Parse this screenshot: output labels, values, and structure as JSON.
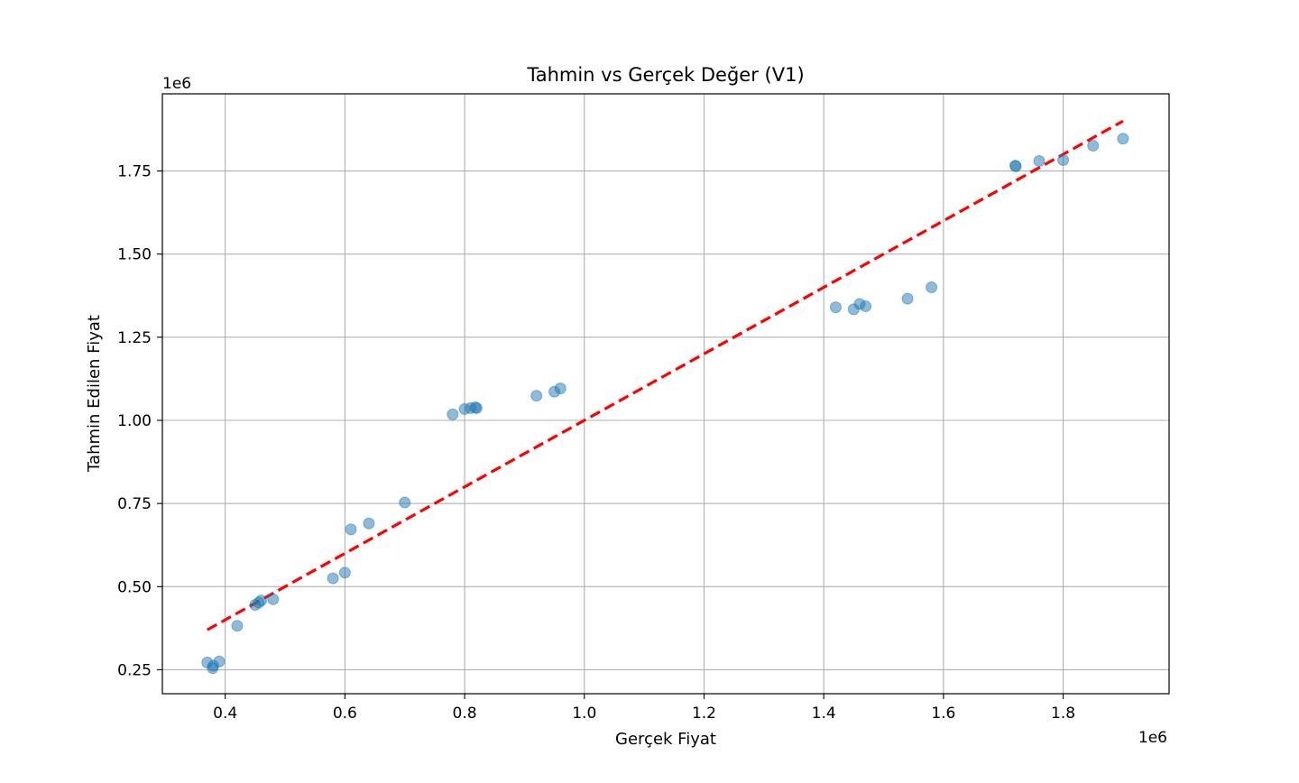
{
  "chart_data": {
    "type": "scatter",
    "title": "Tahmin vs Gerçek Değer (V1)",
    "xlabel": "Gerçek Fiyat",
    "ylabel": "Tahmin Edilen Fiyat",
    "x_offset_label": "1e6",
    "y_offset_label": "1e6",
    "xlim": [
      0.295,
      1.977
    ],
    "ylim": [
      0.178,
      1.982
    ],
    "x_ticks": [
      0.4,
      0.6,
      0.8,
      1.0,
      1.2,
      1.4,
      1.6,
      1.8
    ],
    "x_tick_labels": [
      "0.4",
      "0.6",
      "0.8",
      "1.0",
      "1.2",
      "1.4",
      "1.6",
      "1.8"
    ],
    "y_ticks": [
      0.25,
      0.5,
      0.75,
      1.0,
      1.25,
      1.5,
      1.75
    ],
    "y_tick_labels": [
      "0.25",
      "0.50",
      "0.75",
      "1.00",
      "1.25",
      "1.50",
      "1.75"
    ],
    "grid": true,
    "colors": {
      "points": "#1f77b4",
      "reference_line": "#ff0000"
    },
    "points": [
      {
        "x": 0.37,
        "y": 0.272
      },
      {
        "x": 0.379,
        "y": 0.255
      },
      {
        "x": 0.38,
        "y": 0.262
      },
      {
        "x": 0.39,
        "y": 0.275
      },
      {
        "x": 0.42,
        "y": 0.382
      },
      {
        "x": 0.45,
        "y": 0.445
      },
      {
        "x": 0.456,
        "y": 0.452
      },
      {
        "x": 0.46,
        "y": 0.458
      },
      {
        "x": 0.48,
        "y": 0.462
      },
      {
        "x": 0.58,
        "y": 0.525
      },
      {
        "x": 0.6,
        "y": 0.542
      },
      {
        "x": 0.61,
        "y": 0.672
      },
      {
        "x": 0.64,
        "y": 0.69
      },
      {
        "x": 0.7,
        "y": 0.753
      },
      {
        "x": 0.78,
        "y": 1.018
      },
      {
        "x": 0.8,
        "y": 1.034
      },
      {
        "x": 0.81,
        "y": 1.037
      },
      {
        "x": 0.818,
        "y": 1.039
      },
      {
        "x": 0.82,
        "y": 1.037
      },
      {
        "x": 0.92,
        "y": 1.074
      },
      {
        "x": 0.95,
        "y": 1.086
      },
      {
        "x": 0.96,
        "y": 1.096
      },
      {
        "x": 1.42,
        "y": 1.34
      },
      {
        "x": 1.45,
        "y": 1.334
      },
      {
        "x": 1.46,
        "y": 1.35
      },
      {
        "x": 1.47,
        "y": 1.343
      },
      {
        "x": 1.54,
        "y": 1.366
      },
      {
        "x": 1.58,
        "y": 1.4
      },
      {
        "x": 1.72,
        "y": 1.766
      },
      {
        "x": 1.721,
        "y": 1.764
      },
      {
        "x": 1.76,
        "y": 1.78
      },
      {
        "x": 1.8,
        "y": 1.783
      },
      {
        "x": 1.85,
        "y": 1.826
      },
      {
        "x": 1.9,
        "y": 1.847
      }
    ],
    "reference_line": {
      "x": [
        0.37,
        1.9
      ],
      "y": [
        0.37,
        1.9
      ]
    }
  }
}
